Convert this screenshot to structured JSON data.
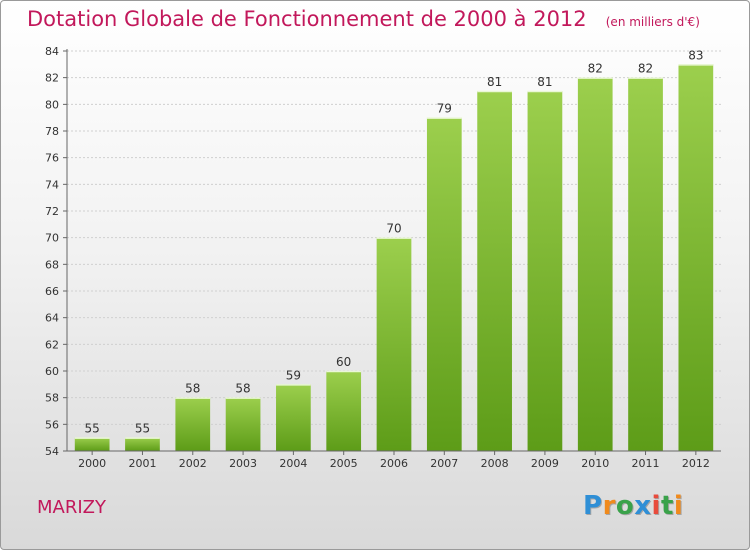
{
  "chart_data": {
    "type": "bar",
    "title": "Dotation Globale de Fonctionnement de 2000 à 2012",
    "unit": "(en milliers d'€)",
    "categories": [
      "2000",
      "2001",
      "2002",
      "2003",
      "2004",
      "2005",
      "2006",
      "2007",
      "2008",
      "2009",
      "2010",
      "2011",
      "2012"
    ],
    "values": [
      55,
      55,
      58,
      58,
      59,
      60,
      70,
      79,
      81,
      81,
      82,
      82,
      83
    ],
    "ylim": [
      54,
      84
    ],
    "yticks": [
      54,
      56,
      58,
      60,
      62,
      64,
      66,
      68,
      70,
      72,
      74,
      76,
      78,
      80,
      82,
      84
    ],
    "grid": true,
    "bar_color_top": "#9ccf4d",
    "bar_color_bottom": "#5d9c18",
    "title_color": "#c2185b"
  },
  "place_name": "MARIZY",
  "logo": {
    "letters": [
      "P",
      "r",
      "o",
      "x",
      "i",
      "t",
      "i"
    ],
    "colors": [
      "#2f8fd6",
      "#f08a1c",
      "#3aa24a",
      "#2f8fd6",
      "#e84b3c",
      "#3aa24a",
      "#f08a1c"
    ]
  }
}
